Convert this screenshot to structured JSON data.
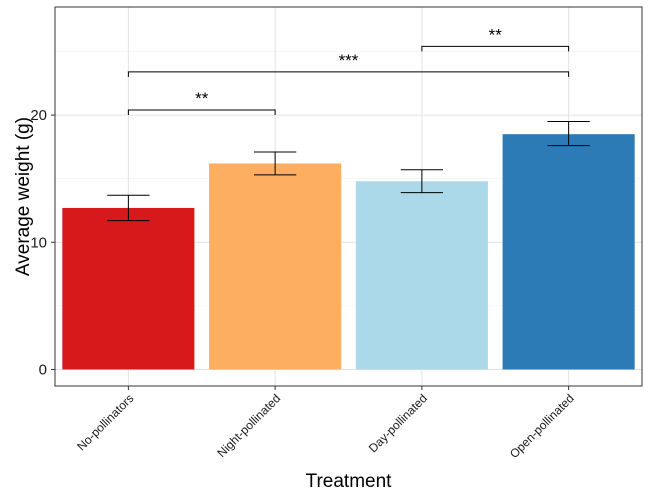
{
  "chart_data": {
    "type": "bar",
    "categories": [
      "No-pollinators",
      "Night-pollinated",
      "Day-pollinated",
      "Open-pollinated"
    ],
    "values": [
      12.7,
      16.2,
      14.8,
      18.5
    ],
    "error_low": [
      11.7,
      15.3,
      13.9,
      17.6
    ],
    "error_high": [
      13.7,
      17.1,
      15.7,
      19.5
    ],
    "colors": [
      "#d7191c",
      "#fdae61",
      "#abd9e9",
      "#2c7bb6"
    ],
    "xlabel": "Treatment",
    "ylabel": "Average weight (g)",
    "ylim": [
      -1.3,
      28.5
    ],
    "yticks": [
      0,
      10,
      20
    ],
    "grid": true,
    "significance": [
      {
        "from": 0,
        "to": 1,
        "y": 20.4,
        "label": "**"
      },
      {
        "from": 0,
        "to": 3,
        "y": 23.4,
        "label": "***"
      },
      {
        "from": 2,
        "to": 3,
        "y": 25.4,
        "label": "**"
      }
    ]
  }
}
